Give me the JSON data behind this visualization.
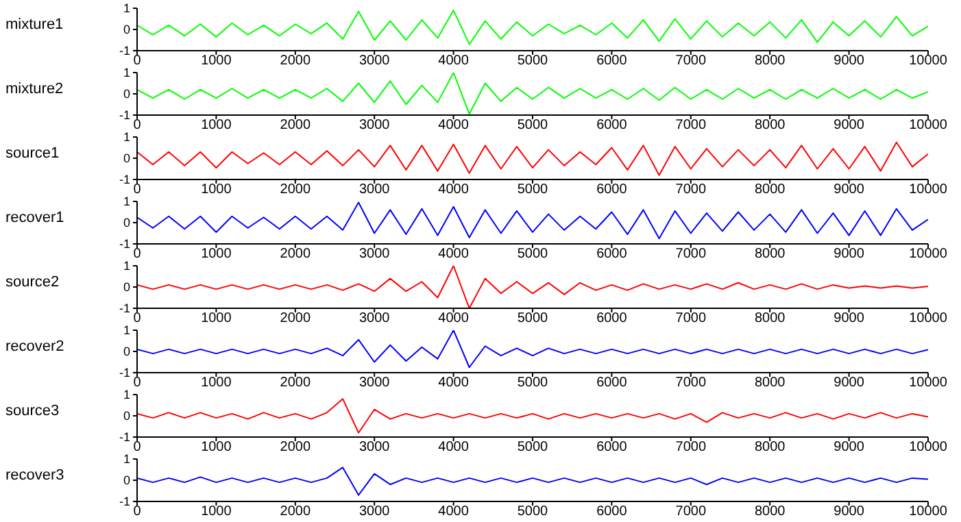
{
  "chart_data": [
    {
      "type": "line",
      "ylabel": "mixture1",
      "xlim": [
        0,
        10000
      ],
      "ylim": [
        -1,
        1
      ],
      "xticks": [
        0,
        1000,
        2000,
        3000,
        4000,
        5000,
        6000,
        7000,
        8000,
        9000,
        10000
      ],
      "yticks": [
        -1,
        0,
        1
      ],
      "x": [
        0,
        200,
        400,
        600,
        800,
        1000,
        1200,
        1400,
        1600,
        1800,
        2000,
        2200,
        2400,
        2600,
        2800,
        3000,
        3200,
        3400,
        3600,
        3800,
        4000,
        4200,
        4400,
        4600,
        4800,
        5000,
        5200,
        5400,
        5600,
        5800,
        6000,
        6200,
        6400,
        6600,
        6800,
        7000,
        7200,
        7400,
        7600,
        7800,
        8000,
        8200,
        8400,
        8600,
        8800,
        9000,
        9200,
        9400,
        9600,
        9800,
        10000
      ],
      "series": [
        {
          "color": "#00ff00",
          "values": [
            0.2,
            -0.25,
            0.2,
            -0.3,
            0.25,
            -0.35,
            0.3,
            -0.25,
            0.2,
            -0.3,
            0.25,
            -0.2,
            0.3,
            -0.45,
            0.85,
            -0.5,
            0.4,
            -0.5,
            0.45,
            -0.4,
            0.9,
            -0.7,
            0.4,
            -0.45,
            0.35,
            -0.3,
            0.25,
            -0.2,
            0.2,
            -0.25,
            0.3,
            -0.4,
            0.45,
            -0.55,
            0.5,
            -0.45,
            0.4,
            -0.35,
            0.3,
            -0.3,
            0.35,
            -0.4,
            0.45,
            -0.6,
            0.35,
            -0.3,
            0.4,
            -0.35,
            0.6,
            -0.3,
            0.15
          ]
        }
      ]
    },
    {
      "type": "line",
      "ylabel": "mixture2",
      "xlim": [
        0,
        10000
      ],
      "ylim": [
        -1,
        1
      ],
      "xticks": [
        0,
        1000,
        2000,
        3000,
        4000,
        5000,
        6000,
        7000,
        8000,
        9000,
        10000
      ],
      "yticks": [
        -1,
        0,
        1
      ],
      "x": [
        0,
        200,
        400,
        600,
        800,
        1000,
        1200,
        1400,
        1600,
        1800,
        2000,
        2200,
        2400,
        2600,
        2800,
        3000,
        3200,
        3400,
        3600,
        3800,
        4000,
        4200,
        4400,
        4600,
        4800,
        5000,
        5200,
        5400,
        5600,
        5800,
        6000,
        6200,
        6400,
        6600,
        6800,
        7000,
        7200,
        7400,
        7600,
        7800,
        8000,
        8200,
        8400,
        8600,
        8800,
        9000,
        9200,
        9400,
        9600,
        9800,
        10000
      ],
      "series": [
        {
          "color": "#00ff00",
          "values": [
            0.2,
            -0.2,
            0.2,
            -0.25,
            0.2,
            -0.2,
            0.25,
            -0.2,
            0.2,
            -0.2,
            0.2,
            -0.2,
            0.25,
            -0.35,
            0.5,
            -0.4,
            0.6,
            -0.5,
            0.4,
            -0.4,
            1,
            -0.95,
            0.5,
            -0.35,
            0.3,
            -0.25,
            0.3,
            -0.2,
            0.25,
            -0.2,
            0.2,
            -0.25,
            0.25,
            -0.3,
            0.3,
            -0.25,
            0.2,
            -0.25,
            0.25,
            -0.2,
            0.2,
            -0.25,
            0.2,
            -0.2,
            0.25,
            -0.2,
            0.2,
            -0.25,
            0.2,
            -0.2,
            0.1
          ]
        }
      ]
    },
    {
      "type": "line",
      "ylabel": "source1",
      "xlim": [
        0,
        10000
      ],
      "ylim": [
        -1,
        1
      ],
      "xticks": [
        0,
        1000,
        2000,
        3000,
        4000,
        5000,
        6000,
        7000,
        8000,
        9000,
        10000
      ],
      "yticks": [
        -1,
        0,
        1
      ],
      "x": [
        0,
        200,
        400,
        600,
        800,
        1000,
        1200,
        1400,
        1600,
        1800,
        2000,
        2200,
        2400,
        2600,
        2800,
        3000,
        3200,
        3400,
        3600,
        3800,
        4000,
        4200,
        4400,
        4600,
        4800,
        5000,
        5200,
        5400,
        5600,
        5800,
        6000,
        6200,
        6400,
        6600,
        6800,
        7000,
        7200,
        7400,
        7600,
        7800,
        8000,
        8200,
        8400,
        8600,
        8800,
        9000,
        9200,
        9400,
        9600,
        9800,
        10000
      ],
      "series": [
        {
          "color": "#ff0000",
          "values": [
            0.3,
            -0.3,
            0.3,
            -0.35,
            0.3,
            -0.45,
            0.3,
            -0.25,
            0.25,
            -0.3,
            0.3,
            -0.3,
            0.35,
            -0.35,
            0.4,
            -0.4,
            0.6,
            -0.55,
            0.6,
            -0.6,
            0.65,
            -0.7,
            0.6,
            -0.5,
            0.55,
            -0.45,
            0.4,
            -0.35,
            0.3,
            -0.3,
            0.5,
            -0.55,
            0.6,
            -0.8,
            0.55,
            -0.5,
            0.45,
            -0.4,
            0.4,
            -0.35,
            0.4,
            -0.45,
            0.6,
            -0.5,
            0.45,
            -0.5,
            0.55,
            -0.6,
            0.75,
            -0.4,
            0.2
          ]
        }
      ]
    },
    {
      "type": "line",
      "ylabel": "recover1",
      "xlim": [
        0,
        10000
      ],
      "ylim": [
        -1,
        1
      ],
      "xticks": [
        0,
        1000,
        2000,
        3000,
        4000,
        5000,
        6000,
        7000,
        8000,
        9000,
        10000
      ],
      "yticks": [
        -1,
        0,
        1
      ],
      "x": [
        0,
        200,
        400,
        600,
        800,
        1000,
        1200,
        1400,
        1600,
        1800,
        2000,
        2200,
        2400,
        2600,
        2800,
        3000,
        3200,
        3400,
        3600,
        3800,
        4000,
        4200,
        4400,
        4600,
        4800,
        5000,
        5200,
        5400,
        5600,
        5800,
        6000,
        6200,
        6400,
        6600,
        6800,
        7000,
        7200,
        7400,
        7600,
        7800,
        8000,
        8200,
        8400,
        8600,
        8800,
        9000,
        9200,
        9400,
        9600,
        9800,
        10000
      ],
      "series": [
        {
          "color": "#0000ff",
          "values": [
            0.25,
            -0.25,
            0.3,
            -0.3,
            0.3,
            -0.45,
            0.3,
            -0.25,
            0.25,
            -0.3,
            0.3,
            -0.3,
            0.3,
            -0.35,
            0.95,
            -0.5,
            0.6,
            -0.55,
            0.65,
            -0.6,
            0.75,
            -0.7,
            0.6,
            -0.5,
            0.55,
            -0.45,
            0.4,
            -0.35,
            0.3,
            -0.3,
            0.5,
            -0.55,
            0.6,
            -0.75,
            0.55,
            -0.5,
            0.45,
            -0.4,
            0.5,
            -0.35,
            0.4,
            -0.45,
            0.6,
            -0.5,
            0.45,
            -0.6,
            0.55,
            -0.6,
            0.65,
            -0.35,
            0.15
          ]
        }
      ]
    },
    {
      "type": "line",
      "ylabel": "source2",
      "xlim": [
        0,
        10000
      ],
      "ylim": [
        -1,
        1
      ],
      "xticks": [
        0,
        1000,
        2000,
        3000,
        4000,
        5000,
        6000,
        7000,
        8000,
        9000,
        10000
      ],
      "yticks": [
        -1,
        0,
        1
      ],
      "x": [
        0,
        200,
        400,
        600,
        800,
        1000,
        1200,
        1400,
        1600,
        1800,
        2000,
        2200,
        2400,
        2600,
        2800,
        3000,
        3200,
        3400,
        3600,
        3800,
        4000,
        4200,
        4400,
        4600,
        4800,
        5000,
        5200,
        5400,
        5600,
        5800,
        6000,
        6200,
        6400,
        6600,
        6800,
        7000,
        7200,
        7400,
        7600,
        7800,
        8000,
        8200,
        8400,
        8600,
        8800,
        9000,
        9200,
        9400,
        9600,
        9800,
        10000
      ],
      "series": [
        {
          "color": "#ff0000",
          "values": [
            0.1,
            -0.1,
            0.1,
            -0.1,
            0.1,
            -0.1,
            0.1,
            -0.1,
            0.1,
            -0.1,
            0.1,
            -0.1,
            0.1,
            -0.15,
            0.15,
            -0.2,
            0.4,
            -0.2,
            0.25,
            -0.5,
            1,
            -1,
            0.4,
            -0.3,
            0.25,
            -0.3,
            0.2,
            -0.35,
            0.2,
            -0.15,
            0.1,
            -0.15,
            0.15,
            -0.1,
            0.1,
            -0.1,
            0.15,
            -0.1,
            0.2,
            -0.1,
            0.1,
            -0.1,
            0.15,
            -0.1,
            0.1,
            -0.05,
            0.05,
            -0.05,
            0.05,
            -0.05,
            0.03
          ]
        }
      ]
    },
    {
      "type": "line",
      "ylabel": "recover2",
      "xlim": [
        0,
        10000
      ],
      "ylim": [
        -1,
        1
      ],
      "xticks": [
        0,
        1000,
        2000,
        3000,
        4000,
        5000,
        6000,
        7000,
        8000,
        9000,
        10000
      ],
      "yticks": [
        -1,
        0,
        1
      ],
      "x": [
        0,
        200,
        400,
        600,
        800,
        1000,
        1200,
        1400,
        1600,
        1800,
        2000,
        2200,
        2400,
        2600,
        2800,
        3000,
        3200,
        3400,
        3600,
        3800,
        4000,
        4200,
        4400,
        4600,
        4800,
        5000,
        5200,
        5400,
        5600,
        5800,
        6000,
        6200,
        6400,
        6600,
        6800,
        7000,
        7200,
        7400,
        7600,
        7800,
        8000,
        8200,
        8400,
        8600,
        8800,
        9000,
        9200,
        9400,
        9600,
        9800,
        10000
      ],
      "series": [
        {
          "color": "#0000ff",
          "values": [
            0.1,
            -0.1,
            0.1,
            -0.1,
            0.1,
            -0.1,
            0.1,
            -0.1,
            0.1,
            -0.1,
            0.1,
            -0.1,
            0.15,
            -0.2,
            0.55,
            -0.5,
            0.3,
            -0.45,
            0.2,
            -0.35,
            1,
            -0.75,
            0.25,
            -0.2,
            0.15,
            -0.2,
            0.15,
            -0.1,
            0.1,
            -0.1,
            0.1,
            -0.1,
            0.1,
            -0.1,
            0.1,
            -0.1,
            0.1,
            -0.1,
            0.1,
            -0.1,
            0.1,
            -0.1,
            0.1,
            -0.1,
            0.1,
            -0.1,
            0.1,
            -0.1,
            0.1,
            -0.1,
            0.08
          ]
        }
      ]
    },
    {
      "type": "line",
      "ylabel": "source3",
      "xlim": [
        0,
        10000
      ],
      "ylim": [
        -1,
        1
      ],
      "xticks": [
        0,
        1000,
        2000,
        3000,
        4000,
        5000,
        6000,
        7000,
        8000,
        9000,
        10000
      ],
      "yticks": [
        -1,
        0,
        1
      ],
      "x": [
        0,
        200,
        400,
        600,
        800,
        1000,
        1200,
        1400,
        1600,
        1800,
        2000,
        2200,
        2400,
        2600,
        2800,
        3000,
        3200,
        3400,
        3600,
        3800,
        4000,
        4200,
        4400,
        4600,
        4800,
        5000,
        5200,
        5400,
        5600,
        5800,
        6000,
        6200,
        6400,
        6600,
        6800,
        7000,
        7200,
        7400,
        7600,
        7800,
        8000,
        8200,
        8400,
        8600,
        8800,
        9000,
        9200,
        9400,
        9600,
        9800,
        10000
      ],
      "series": [
        {
          "color": "#ff0000",
          "values": [
            0.1,
            -0.1,
            0.15,
            -0.1,
            0.15,
            -0.1,
            0.1,
            -0.15,
            0.15,
            -0.1,
            0.1,
            -0.15,
            0.15,
            0.8,
            -0.8,
            0.3,
            -0.15,
            0.1,
            -0.1,
            0.1,
            -0.1,
            0.1,
            -0.1,
            0.1,
            -0.1,
            0.1,
            -0.15,
            0.1,
            -0.1,
            0.1,
            -0.1,
            0.1,
            -0.1,
            0.1,
            -0.15,
            0.1,
            -0.3,
            0.15,
            -0.1,
            0.1,
            -0.1,
            0.15,
            -0.1,
            0.1,
            -0.15,
            0.1,
            -0.1,
            0.15,
            -0.1,
            0.1,
            -0.05
          ]
        }
      ]
    },
    {
      "type": "line",
      "ylabel": "recover3",
      "xlim": [
        0,
        10000
      ],
      "ylim": [
        -1,
        1
      ],
      "xticks": [
        0,
        1000,
        2000,
        3000,
        4000,
        5000,
        6000,
        7000,
        8000,
        9000,
        10000
      ],
      "yticks": [
        -1,
        0,
        1
      ],
      "x": [
        0,
        200,
        400,
        600,
        800,
        1000,
        1200,
        1400,
        1600,
        1800,
        2000,
        2200,
        2400,
        2600,
        2800,
        3000,
        3200,
        3400,
        3600,
        3800,
        4000,
        4200,
        4400,
        4600,
        4800,
        5000,
        5200,
        5400,
        5600,
        5800,
        6000,
        6200,
        6400,
        6600,
        6800,
        7000,
        7200,
        7400,
        7600,
        7800,
        8000,
        8200,
        8400,
        8600,
        8800,
        9000,
        9200,
        9400,
        9600,
        9800,
        10000
      ],
      "series": [
        {
          "color": "#0000ff",
          "values": [
            0.1,
            -0.1,
            0.1,
            -0.1,
            0.15,
            -0.1,
            0.1,
            -0.1,
            0.1,
            -0.1,
            0.1,
            -0.1,
            0.1,
            0.6,
            -0.7,
            0.3,
            -0.2,
            0.1,
            -0.1,
            0.1,
            -0.1,
            0.1,
            -0.1,
            0.1,
            -0.1,
            0.1,
            -0.1,
            0.1,
            -0.1,
            0.1,
            -0.1,
            0.1,
            -0.1,
            0.1,
            -0.1,
            0.1,
            -0.2,
            0.1,
            -0.1,
            0.1,
            -0.1,
            0.1,
            -0.1,
            0.1,
            -0.1,
            0.1,
            -0.1,
            0.1,
            -0.1,
            0.1,
            0.05
          ]
        }
      ]
    }
  ]
}
